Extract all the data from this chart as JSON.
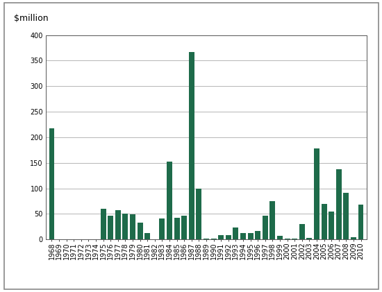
{
  "years": [
    "1968",
    "1969",
    "1970",
    "1971",
    "1972",
    "1973",
    "1974",
    "1975",
    "1976",
    "1977",
    "1978",
    "1979",
    "1980",
    "1981",
    "1982",
    "1983",
    "1984",
    "1985",
    "1986",
    "1987",
    "1988",
    "1989",
    "1990",
    "1991",
    "1992",
    "1993",
    "1994",
    "1995",
    "1996",
    "1997",
    "1998",
    "1999",
    "2000",
    "2001",
    "2002",
    "2003",
    "2004",
    "2005",
    "2006",
    "2007",
    "2008",
    "2009",
    "2010"
  ],
  "values": [
    218,
    0,
    0,
    0,
    0,
    0,
    0,
    60,
    46,
    57,
    50,
    49,
    33,
    13,
    0,
    41,
    152,
    42,
    46,
    367,
    100,
    1,
    2,
    9,
    8,
    24,
    12,
    13,
    16,
    46,
    75,
    7,
    2,
    1,
    30,
    3,
    178,
    70,
    54,
    138,
    91,
    5,
    68
  ],
  "bar_color": "#1e6b4a",
  "ylabel": "$million",
  "ylim": [
    0,
    400
  ],
  "yticks": [
    0,
    50,
    100,
    150,
    200,
    250,
    300,
    350,
    400
  ],
  "background_color": "#ffffff",
  "border_color": "#555555",
  "grid_color": "#aaaaaa",
  "ylabel_fontsize": 9,
  "tick_fontsize": 7,
  "outer_border_color": "#888888"
}
